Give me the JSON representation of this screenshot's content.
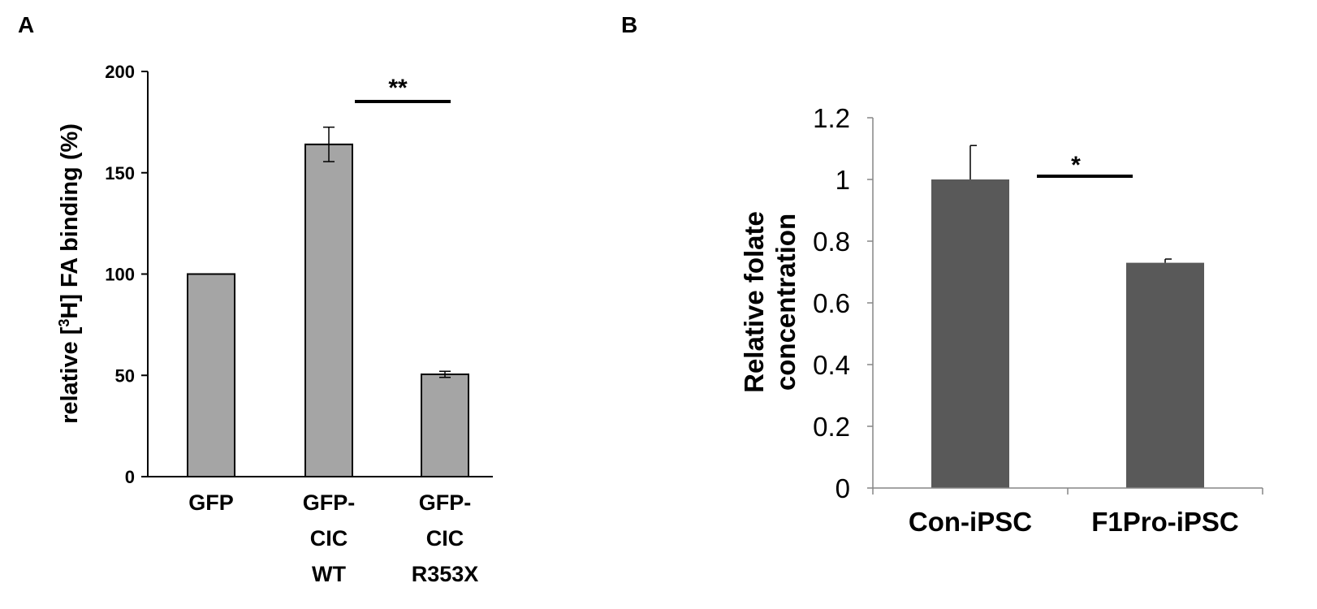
{
  "panels": {
    "a_label": "A",
    "b_label": "B"
  },
  "chart_data": [
    {
      "type": "bar",
      "panel": "A",
      "categories": [
        [
          "GFP"
        ],
        [
          "GFP-",
          "CIC",
          "WT"
        ],
        [
          "GFP-",
          "CIC",
          "R353X"
        ]
      ],
      "values": [
        100,
        164,
        50.5
      ],
      "errors": [
        0,
        8.5,
        1.5
      ],
      "ylabel_parts": [
        "relative [",
        "3",
        "H] FA binding (%)"
      ],
      "ylim": [
        0,
        200
      ],
      "yticks": [
        0,
        50,
        100,
        150,
        200
      ],
      "significance": {
        "from": 1,
        "to": 2,
        "label": "**"
      },
      "colors": {
        "bar_fill": "#a5a5a5",
        "bar_stroke": "#000000",
        "axis": "#000000"
      }
    },
    {
      "type": "bar",
      "panel": "B",
      "categories": [
        "Con-iPSC",
        "F1Pro-iPSC"
      ],
      "values": [
        1.0,
        0.73
      ],
      "errors": [
        0.11,
        0.012
      ],
      "ylabel_lines": [
        "Relative folate",
        "concentration"
      ],
      "ylim": [
        0,
        1.2
      ],
      "yticks": [
        "0",
        "0.2",
        "0.4",
        "0.6",
        "0.8",
        "1",
        "1.2"
      ],
      "significance": {
        "from": 0,
        "to": 1,
        "label": "*"
      },
      "colors": {
        "bar_fill": "#595959",
        "axis": "#868686"
      }
    }
  ]
}
